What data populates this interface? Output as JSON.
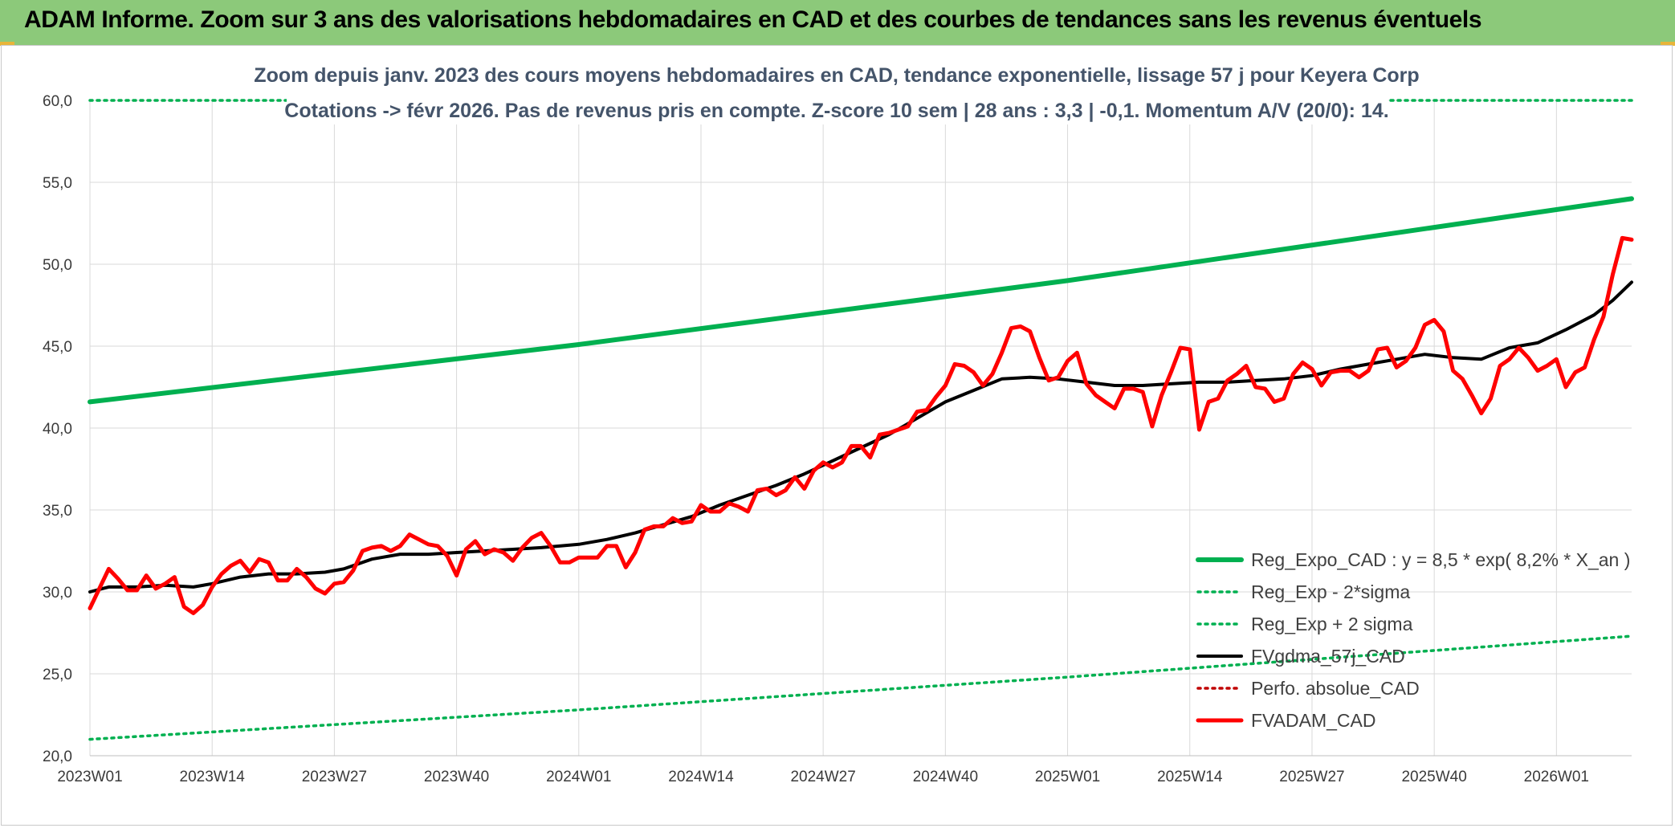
{
  "header": {
    "title": "ADAM Informe. Zoom sur 3 ans des valorisations hebdomadaires en CAD et des courbes de tendances sans les revenus éventuels"
  },
  "colors": {
    "banner": "#8cc97a",
    "trend": "#00b050",
    "band": "#00b050",
    "price": "#ff0000",
    "smoothed": "#000000",
    "perf": "#c00000",
    "subtitle": "#44546a"
  },
  "chart_data": {
    "type": "line",
    "subtitle_lines": [
      "Zoom depuis janv. 2023 des cours moyens hebdomadaires en CAD, tendance exponentielle, lissage 57 j pour Keyera Corp",
      "Cotations -> févr 2026. Pas de revenus pris en compte. Z-score 10 sem | 28 ans : 3,3 | -0,1. Momentum A/V (20/0): 14."
    ],
    "ylim": [
      20,
      60
    ],
    "y_ticks": [
      "20,0",
      "25,0",
      "30,0",
      "35,0",
      "40,0",
      "45,0",
      "50,0",
      "55,0",
      "60,0"
    ],
    "x_ticks": [
      {
        "week": 0,
        "label": "2023W01"
      },
      {
        "week": 13,
        "label": "2023W14"
      },
      {
        "week": 26,
        "label": "2023W27"
      },
      {
        "week": 39,
        "label": "2023W40"
      },
      {
        "week": 52,
        "label": "2024W01"
      },
      {
        "week": 65,
        "label": "2024W14"
      },
      {
        "week": 78,
        "label": "2024W27"
      },
      {
        "week": 91,
        "label": "2024W40"
      },
      {
        "week": 104,
        "label": "2025W01"
      },
      {
        "week": 117,
        "label": "2025W14"
      },
      {
        "week": 130,
        "label": "2025W27"
      },
      {
        "week": 143,
        "label": "2025W40"
      },
      {
        "week": 156,
        "label": "2026W01"
      }
    ],
    "grid": true,
    "legend_position": "bottom-right",
    "series": [
      {
        "name": "Reg_Expo_CAD : y = 8,5 * exp( 8,2% *  X_an )",
        "style": "solid-thick",
        "color": "#00b050",
        "points": [
          [
            0,
            41.6
          ],
          [
            52,
            45.1
          ],
          [
            104,
            49.0
          ],
          [
            164,
            54.0
          ]
        ]
      },
      {
        "name": "Reg_Exp - 2*sigma",
        "style": "dotted",
        "color": "#00b050",
        "points": [
          [
            0,
            21.0
          ],
          [
            52,
            22.8
          ],
          [
            104,
            24.8
          ],
          [
            164,
            27.3
          ]
        ]
      },
      {
        "name": "Reg_Exp + 2 sigma",
        "style": "dotted",
        "color": "#00b050",
        "points": [
          [
            0,
            60.0
          ],
          [
            164,
            60.0
          ]
        ]
      },
      {
        "name": "FVgdma_57j_CAD",
        "style": "solid",
        "color": "#000000",
        "points": [
          [
            0,
            30.0
          ],
          [
            2,
            30.3
          ],
          [
            5,
            30.3
          ],
          [
            8,
            30.4
          ],
          [
            11,
            30.3
          ],
          [
            13,
            30.5
          ],
          [
            16,
            30.9
          ],
          [
            19,
            31.1
          ],
          [
            22,
            31.1
          ],
          [
            25,
            31.2
          ],
          [
            27,
            31.4
          ],
          [
            30,
            32.0
          ],
          [
            33,
            32.3
          ],
          [
            36,
            32.3
          ],
          [
            39,
            32.4
          ],
          [
            42,
            32.5
          ],
          [
            45,
            32.6
          ],
          [
            48,
            32.7
          ],
          [
            52,
            32.9
          ],
          [
            55,
            33.2
          ],
          [
            58,
            33.6
          ],
          [
            61,
            34.1
          ],
          [
            64,
            34.6
          ],
          [
            67,
            35.3
          ],
          [
            70,
            35.9
          ],
          [
            73,
            36.5
          ],
          [
            76,
            37.2
          ],
          [
            79,
            38.0
          ],
          [
            82,
            38.8
          ],
          [
            85,
            39.6
          ],
          [
            88,
            40.6
          ],
          [
            91,
            41.6
          ],
          [
            94,
            42.3
          ],
          [
            97,
            43.0
          ],
          [
            100,
            43.1
          ],
          [
            103,
            43.0
          ],
          [
            106,
            42.8
          ],
          [
            109,
            42.6
          ],
          [
            112,
            42.6
          ],
          [
            115,
            42.7
          ],
          [
            118,
            42.8
          ],
          [
            121,
            42.8
          ],
          [
            124,
            42.9
          ],
          [
            127,
            43.0
          ],
          [
            130,
            43.2
          ],
          [
            133,
            43.6
          ],
          [
            136,
            43.9
          ],
          [
            139,
            44.2
          ],
          [
            142,
            44.5
          ],
          [
            145,
            44.3
          ],
          [
            148,
            44.2
          ],
          [
            151,
            44.9
          ],
          [
            154,
            45.2
          ],
          [
            157,
            46.0
          ],
          [
            160,
            46.9
          ],
          [
            162,
            47.8
          ],
          [
            164,
            48.9
          ]
        ]
      },
      {
        "name": "Perfo. absolue_CAD",
        "style": "dotted",
        "color": "#c00000",
        "points": []
      },
      {
        "name": "FVADAM_CAD",
        "style": "solid-thick",
        "color": "#ff0000",
        "points": [
          [
            0,
            29.0
          ],
          [
            1,
            30.2
          ],
          [
            2,
            31.4
          ],
          [
            3,
            30.8
          ],
          [
            4,
            30.1
          ],
          [
            5,
            30.1
          ],
          [
            6,
            31.0
          ],
          [
            7,
            30.2
          ],
          [
            8,
            30.5
          ],
          [
            9,
            30.9
          ],
          [
            10,
            29.1
          ],
          [
            11,
            28.7
          ],
          [
            12,
            29.2
          ],
          [
            13,
            30.3
          ],
          [
            14,
            31.1
          ],
          [
            15,
            31.6
          ],
          [
            16,
            31.9
          ],
          [
            17,
            31.2
          ],
          [
            18,
            32.0
          ],
          [
            19,
            31.8
          ],
          [
            20,
            30.7
          ],
          [
            21,
            30.7
          ],
          [
            22,
            31.4
          ],
          [
            23,
            30.9
          ],
          [
            24,
            30.2
          ],
          [
            25,
            29.9
          ],
          [
            26,
            30.5
          ],
          [
            27,
            30.6
          ],
          [
            28,
            31.3
          ],
          [
            29,
            32.5
          ],
          [
            30,
            32.7
          ],
          [
            31,
            32.8
          ],
          [
            32,
            32.5
          ],
          [
            33,
            32.8
          ],
          [
            34,
            33.5
          ],
          [
            35,
            33.2
          ],
          [
            36,
            32.9
          ],
          [
            37,
            32.8
          ],
          [
            38,
            32.2
          ],
          [
            39,
            31.0
          ],
          [
            40,
            32.6
          ],
          [
            41,
            33.1
          ],
          [
            42,
            32.3
          ],
          [
            43,
            32.6
          ],
          [
            44,
            32.4
          ],
          [
            45,
            31.9
          ],
          [
            46,
            32.7
          ],
          [
            47,
            33.3
          ],
          [
            48,
            33.6
          ],
          [
            49,
            32.8
          ],
          [
            50,
            31.8
          ],
          [
            51,
            31.8
          ],
          [
            52,
            32.1
          ],
          [
            53,
            32.1
          ],
          [
            54,
            32.1
          ],
          [
            55,
            32.8
          ],
          [
            56,
            32.8
          ],
          [
            57,
            31.5
          ],
          [
            58,
            32.4
          ],
          [
            59,
            33.8
          ],
          [
            60,
            34.0
          ],
          [
            61,
            34.0
          ],
          [
            62,
            34.5
          ],
          [
            63,
            34.2
          ],
          [
            64,
            34.3
          ],
          [
            65,
            35.3
          ],
          [
            66,
            34.9
          ],
          [
            67,
            34.9
          ],
          [
            68,
            35.4
          ],
          [
            69,
            35.2
          ],
          [
            70,
            34.9
          ],
          [
            71,
            36.2
          ],
          [
            72,
            36.3
          ],
          [
            73,
            35.9
          ],
          [
            74,
            36.2
          ],
          [
            75,
            37.0
          ],
          [
            76,
            36.3
          ],
          [
            77,
            37.4
          ],
          [
            78,
            37.9
          ],
          [
            79,
            37.6
          ],
          [
            80,
            37.9
          ],
          [
            81,
            38.9
          ],
          [
            82,
            38.9
          ],
          [
            83,
            38.2
          ],
          [
            84,
            39.6
          ],
          [
            85,
            39.7
          ],
          [
            86,
            39.9
          ],
          [
            87,
            40.1
          ],
          [
            88,
            41.0
          ],
          [
            89,
            41.1
          ],
          [
            90,
            41.9
          ],
          [
            91,
            42.6
          ],
          [
            92,
            43.9
          ],
          [
            93,
            43.8
          ],
          [
            94,
            43.4
          ],
          [
            95,
            42.6
          ],
          [
            96,
            43.3
          ],
          [
            97,
            44.6
          ],
          [
            98,
            46.1
          ],
          [
            99,
            46.2
          ],
          [
            100,
            45.9
          ],
          [
            101,
            44.3
          ],
          [
            102,
            42.9
          ],
          [
            103,
            43.1
          ],
          [
            104,
            44.1
          ],
          [
            105,
            44.6
          ],
          [
            106,
            42.7
          ],
          [
            107,
            42.0
          ],
          [
            108,
            41.6
          ],
          [
            109,
            41.2
          ],
          [
            110,
            42.4
          ],
          [
            111,
            42.4
          ],
          [
            112,
            42.2
          ],
          [
            113,
            40.1
          ],
          [
            114,
            42.0
          ],
          [
            115,
            43.4
          ],
          [
            116,
            44.9
          ],
          [
            117,
            44.8
          ],
          [
            118,
            39.9
          ],
          [
            119,
            41.6
          ],
          [
            120,
            41.8
          ],
          [
            121,
            42.9
          ],
          [
            122,
            43.3
          ],
          [
            123,
            43.8
          ],
          [
            124,
            42.5
          ],
          [
            125,
            42.4
          ],
          [
            126,
            41.6
          ],
          [
            127,
            41.8
          ],
          [
            128,
            43.3
          ],
          [
            129,
            44.0
          ],
          [
            130,
            43.6
          ],
          [
            131,
            42.6
          ],
          [
            132,
            43.4
          ],
          [
            133,
            43.5
          ],
          [
            134,
            43.5
          ],
          [
            135,
            43.1
          ],
          [
            136,
            43.5
          ],
          [
            137,
            44.8
          ],
          [
            138,
            44.9
          ],
          [
            139,
            43.7
          ],
          [
            140,
            44.1
          ],
          [
            141,
            44.9
          ],
          [
            142,
            46.3
          ],
          [
            143,
            46.6
          ],
          [
            144,
            45.9
          ],
          [
            145,
            43.5
          ],
          [
            146,
            43.0
          ],
          [
            147,
            42.0
          ],
          [
            148,
            40.9
          ],
          [
            149,
            41.8
          ],
          [
            150,
            43.8
          ],
          [
            151,
            44.2
          ],
          [
            152,
            44.9
          ],
          [
            153,
            44.3
          ],
          [
            154,
            43.5
          ],
          [
            155,
            43.8
          ],
          [
            156,
            44.2
          ],
          [
            157,
            42.5
          ],
          [
            158,
            43.4
          ],
          [
            159,
            43.7
          ],
          [
            160,
            45.4
          ],
          [
            161,
            46.8
          ],
          [
            162,
            49.4
          ],
          [
            163,
            51.6
          ],
          [
            164,
            51.5
          ]
        ]
      }
    ]
  }
}
